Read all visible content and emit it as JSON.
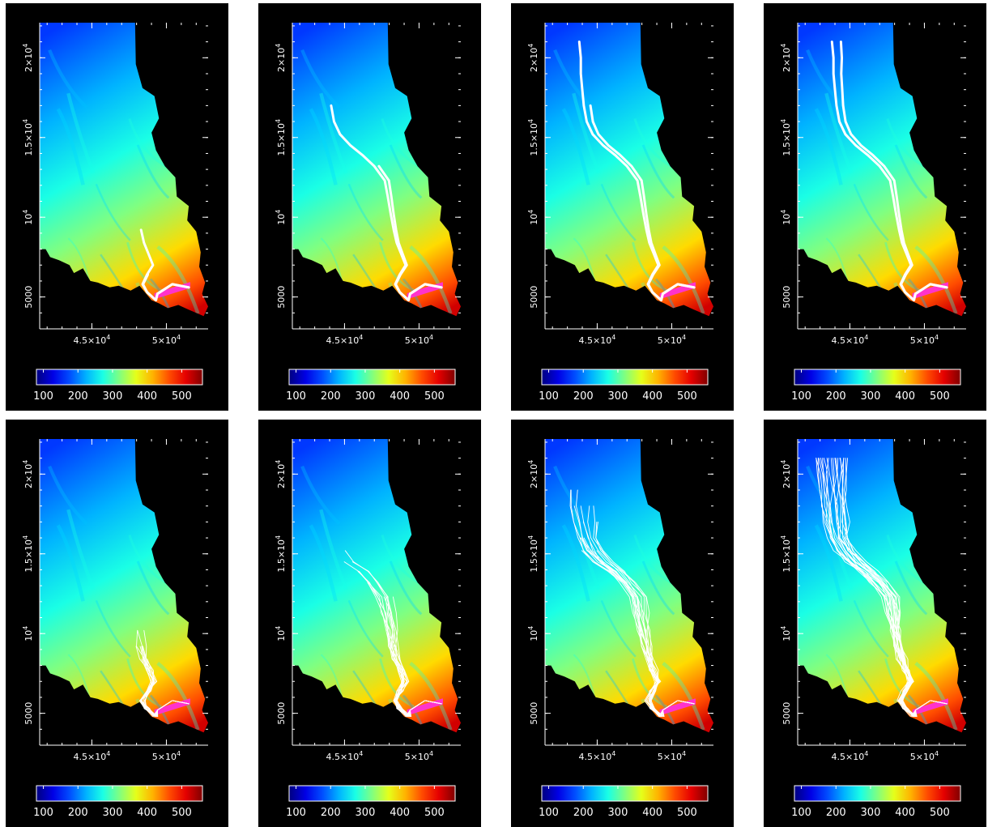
{
  "chart_data": [
    {
      "type": "heatmap",
      "panel": 1,
      "row": 1,
      "col": 1,
      "track_style": "thick",
      "track_count": 2,
      "track_top_y": [
        9900,
        6900
      ]
    },
    {
      "type": "heatmap",
      "panel": 2,
      "row": 1,
      "col": 2,
      "track_style": "thick",
      "track_count": 2,
      "track_top_y": [
        17800,
        13400
      ]
    },
    {
      "type": "heatmap",
      "panel": 3,
      "row": 1,
      "col": 3,
      "track_style": "thick",
      "track_count": 2,
      "track_top_y": [
        21600,
        17300
      ]
    },
    {
      "type": "heatmap",
      "panel": 4,
      "row": 1,
      "col": 4,
      "track_style": "thick",
      "track_count": 2,
      "track_top_y": [
        21600,
        21600
      ]
    },
    {
      "type": "heatmap",
      "panel": 5,
      "row": 2,
      "col": 1,
      "track_style": "thin",
      "track_count": 12,
      "track_top_y": [
        10700,
        10500,
        10300,
        10100,
        9900,
        9700,
        9500,
        9300,
        9100,
        8900,
        8700,
        8500
      ]
    },
    {
      "type": "heatmap",
      "panel": 6,
      "row": 2,
      "col": 2,
      "track_style": "thin",
      "track_count": 14,
      "track_top_y": [
        15300,
        15000,
        14700,
        14400,
        14100,
        13800,
        13500,
        13200,
        12900,
        12600,
        12300,
        12000,
        11700,
        11400
      ]
    },
    {
      "type": "heatmap",
      "panel": 7,
      "row": 2,
      "col": 3,
      "track_style": "thin",
      "track_count": 16,
      "track_top_y": [
        19800,
        19500,
        19200,
        18900,
        18600,
        18300,
        18000,
        17700,
        17400,
        17100,
        16800,
        16500,
        16200,
        15900,
        15600,
        15300
      ]
    },
    {
      "type": "heatmap",
      "panel": 8,
      "row": 2,
      "col": 4,
      "track_style": "thin",
      "track_count": 20,
      "track_top_y": [
        21600,
        21600,
        21600,
        21600,
        21600,
        21600,
        21600,
        21600,
        21600,
        21600,
        21600,
        21600,
        21600,
        21600,
        21600,
        21600,
        21600,
        21600,
        21600,
        21600
      ]
    }
  ],
  "axes": {
    "xlim": [
      41500,
      52800
    ],
    "ylim": [
      3000,
      22200
    ],
    "xticks": [
      {
        "value": 45000,
        "base": "4.5×10",
        "exp": "4"
      },
      {
        "value": 50000,
        "base": "5×10",
        "exp": "4"
      }
    ],
    "yticks": [
      {
        "value": 5000,
        "label": "5000"
      },
      {
        "value": 10000,
        "base": "10",
        "exp": "4"
      },
      {
        "value": 15000,
        "base": "1.5×10",
        "exp": "4"
      },
      {
        "value": 20000,
        "base": "2×10",
        "exp": "4"
      }
    ]
  },
  "colorbar": {
    "range": [
      80,
      560
    ],
    "ticks": [
      "100",
      "200",
      "300",
      "400",
      "500"
    ],
    "colormap": "jet"
  },
  "colors": {
    "background": "#000000",
    "track": "#ffffff",
    "source": "#ff33cc"
  }
}
